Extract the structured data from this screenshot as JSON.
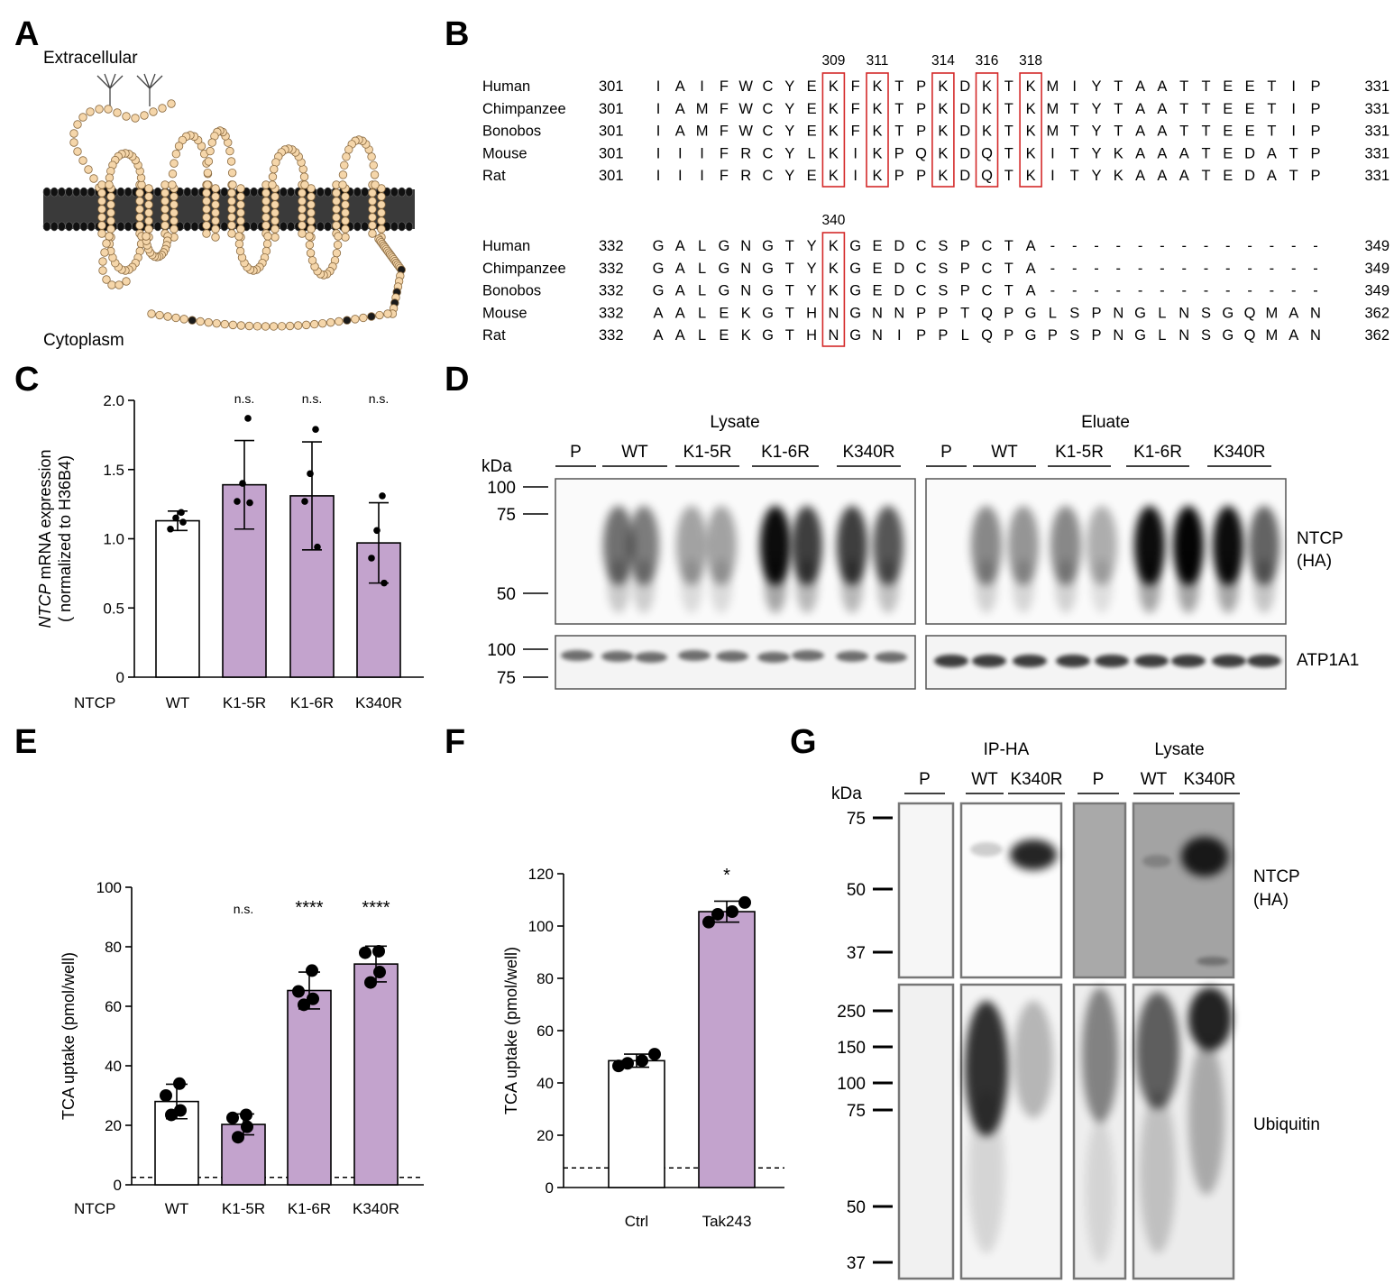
{
  "colors": {
    "bar_fill": "#c3a3cd",
    "bar_stroke": "#000",
    "box_red": "#d42a2a",
    "bead": "#f5d6aa",
    "membrane": "#1a1a1a"
  },
  "panels": {
    "A": "A",
    "B": "B",
    "C": "C",
    "D": "D",
    "E": "E",
    "F": "F",
    "G": "G"
  },
  "topology": {
    "top_label": "Extracellular",
    "bottom_label": "Cytoplasm"
  },
  "alignment": {
    "block1": {
      "positions": [
        "309",
        "311",
        "314",
        "316",
        "318"
      ],
      "rows": [
        {
          "species": "Human",
          "start": "301",
          "seq": "IAIFWCYEKFKTPKDKTKMIYTAATTEETIP",
          "end": "331"
        },
        {
          "species": "Chimpanzee",
          "start": "301",
          "seq": "IAMFWCYEKFKTPKDKTKMTYTAATTEETIP",
          "end": "331"
        },
        {
          "species": "Bonobos",
          "start": "301",
          "seq": "IAMFWCYEKFKTPKDKTKMTYTAATTEETIP",
          "end": "331"
        },
        {
          "species": "Mouse",
          "start": "301",
          "seq": "IIIFRCYLKIKPQKDQTKITYKAAATEDATP",
          "end": "331"
        },
        {
          "species": "Rat",
          "start": "301",
          "seq": "IIIFRCYEKIKPPKDQTKITYKAAATEDATP",
          "end": "331"
        }
      ]
    },
    "block2": {
      "positions": [
        "340"
      ],
      "rows": [
        {
          "species": "Human",
          "start": "332",
          "seq": "GALGNGTYKGEDCSPCTA-------------",
          "end": "349"
        },
        {
          "species": "Chimpanzee",
          "start": "332",
          "seq": "GALGNGTYKGEDCSPCTA-------------",
          "end": "349"
        },
        {
          "species": "Bonobos",
          "start": "332",
          "seq": "GALGNGTYKGEDCSPCTA-------------",
          "end": "349"
        },
        {
          "species": "Mouse",
          "start": "332",
          "seq": "AALEKGTHNGNNPPTQPGLSPNGLNSGQMAN",
          "end": "362"
        },
        {
          "species": "Rat",
          "start": "332",
          "seq": "AALEKGTHNGNIPPLQPGPSPNGLNSGQMAN",
          "end": "362"
        }
      ]
    }
  },
  "blot_D": {
    "kda_label": "kDa",
    "group_lysate": "Lysate",
    "group_eluate": "Eluate",
    "lanes": [
      "P",
      "WT",
      "K1-5R",
      "K1-6R",
      "K340R"
    ],
    "markers_top": [
      "100",
      "75",
      "50"
    ],
    "markers_bottom": [
      "100",
      "75"
    ],
    "label_ntcp": "NTCP",
    "label_ha": "(HA)",
    "label_atp": "ATP1A1"
  },
  "blot_G": {
    "kda_label": "kDa",
    "group_ip": "IP-HA",
    "group_lysate": "Lysate",
    "lanes": [
      "P",
      "WT",
      "K340R"
    ],
    "markers_top": [
      "75",
      "50",
      "37"
    ],
    "markers_bottom": [
      "250",
      "150",
      "100",
      "75",
      "50",
      "37"
    ],
    "label_ntcp": "NTCP",
    "label_ha": "(HA)",
    "label_ub": "Ubiquitin"
  },
  "chart_data": [
    {
      "panel": "C",
      "type": "bar",
      "ylabel_italic": "NTCP",
      "ylabel_rest": " mRNA expression",
      "ylabel_line2": "( normalized to H36B4)",
      "xlabel_prefix": "NTCP",
      "categories": [
        "WT",
        "K1-5R",
        "K1-6R",
        "K340R"
      ],
      "values": [
        1.13,
        1.39,
        1.31,
        0.97
      ],
      "errors": [
        0.07,
        0.32,
        0.39,
        0.29
      ],
      "points": [
        [
          1.19,
          1.15,
          1.07,
          1.12
        ],
        [
          1.87,
          1.4,
          1.27,
          1.26
        ],
        [
          1.79,
          1.47,
          1.27,
          0.94
        ],
        [
          1.31,
          1.06,
          0.86,
          0.68
        ]
      ],
      "annotations": [
        "",
        "n.s.",
        "n.s.",
        "n.s."
      ],
      "ylim": [
        0,
        2.0
      ],
      "yticks": [
        "0",
        "0.5",
        "1.0",
        "1.5",
        "2.0"
      ],
      "baseline": null
    },
    {
      "panel": "E",
      "type": "bar",
      "ylabel": "TCA uptake (pmol/well)",
      "xlabel_prefix": "NTCP",
      "categories": [
        "WT",
        "K1-5R",
        "K1-6R",
        "K340R"
      ],
      "values": [
        28,
        20.3,
        65.3,
        74.2
      ],
      "errors": [
        5.8,
        3.5,
        6.2,
        6.0
      ],
      "points": [
        [
          34,
          30,
          25,
          23.5
        ],
        [
          23.5,
          22.5,
          19.5,
          16
        ],
        [
          72,
          65,
          62.5,
          60.5
        ],
        [
          78.5,
          78,
          71.5,
          68
        ]
      ],
      "annotations": [
        "",
        "n.s.",
        "****",
        "****"
      ],
      "ylim": [
        0,
        100
      ],
      "yticks": [
        "0",
        "20",
        "40",
        "60",
        "80",
        "100"
      ],
      "baseline": 2.5
    },
    {
      "panel": "F",
      "type": "bar",
      "ylabel": "TCA uptake (pmol/well)",
      "categories": [
        "Ctrl",
        "Tak243"
      ],
      "values": [
        48.5,
        105.5
      ],
      "errors": [
        2.5,
        4.0
      ],
      "points": [
        [
          51,
          48.5,
          47.5,
          46.5
        ],
        [
          109,
          105.5,
          104.5,
          101.5
        ]
      ],
      "annotations": [
        "",
        "*"
      ],
      "ylim": [
        0,
        120
      ],
      "yticks": [
        "0",
        "20",
        "40",
        "60",
        "80",
        "100",
        "120"
      ],
      "baseline": 7.5
    }
  ]
}
